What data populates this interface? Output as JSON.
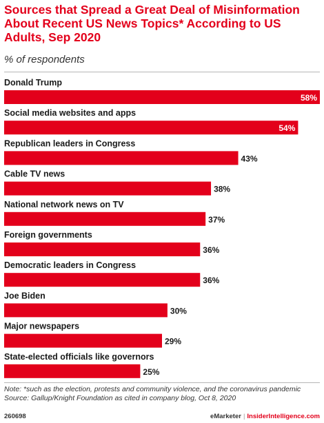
{
  "header": {
    "title": "Sources that Spread a Great Deal of Misinformation About Recent US News Topics* According to US Adults, Sep 2020",
    "subtitle": "% of respondents"
  },
  "notes": {
    "note": "Note: *such as the election, protests and community violence, and the coronavirus pandemic",
    "source": "Source: Gallup/Knight Foundation as cited in company blog, Oct 8, 2020"
  },
  "footer": {
    "id": "260698",
    "brand1": "eMarketer",
    "separator": "|",
    "brand2": "InsiderIntelligence.com"
  },
  "colors": {
    "bar": "#e3001b",
    "title": "#e3001b",
    "label_inside": "#ffffff",
    "label_outside": "#1a1a1a"
  },
  "chart_data": {
    "type": "bar",
    "orientation": "horizontal",
    "categories": [
      "Donald Trump",
      "Social media websites and apps",
      "Republican leaders in Congress",
      "Cable TV news",
      "National network news on TV",
      "Foreign governments",
      "Democratic leaders in Congress",
      "Joe Biden",
      "Major newspapers",
      "State-elected officials like governors"
    ],
    "values": [
      58,
      54,
      43,
      38,
      37,
      36,
      36,
      30,
      29,
      25
    ],
    "value_labels": [
      "58%",
      "54%",
      "43%",
      "38%",
      "37%",
      "36%",
      "36%",
      "30%",
      "29%",
      "25%"
    ],
    "unit": "%",
    "xlim": [
      0,
      58
    ],
    "grid": false,
    "legend": "none"
  }
}
